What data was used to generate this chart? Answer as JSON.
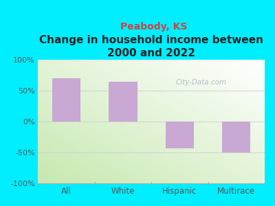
{
  "title": "Change in household income between\n2000 and 2022",
  "subtitle": "Peabody, KS",
  "categories": [
    "All",
    "White",
    "Hispanic",
    "Multirace"
  ],
  "values": [
    70,
    65,
    -43,
    -50
  ],
  "bar_color": "#c9a8d4",
  "title_fontsize": 11,
  "subtitle_fontsize": 10,
  "subtitle_color": "#cc4444",
  "title_color": "#222222",
  "background_outer": "#00eeff",
  "ylim": [
    -100,
    100
  ],
  "yticks": [
    -100,
    -50,
    0,
    50,
    100
  ],
  "ytick_labels": [
    "-100%",
    "-50%",
    "0%",
    "50%",
    "100%"
  ],
  "watermark": "City-Data.com",
  "tick_color": "#555555"
}
